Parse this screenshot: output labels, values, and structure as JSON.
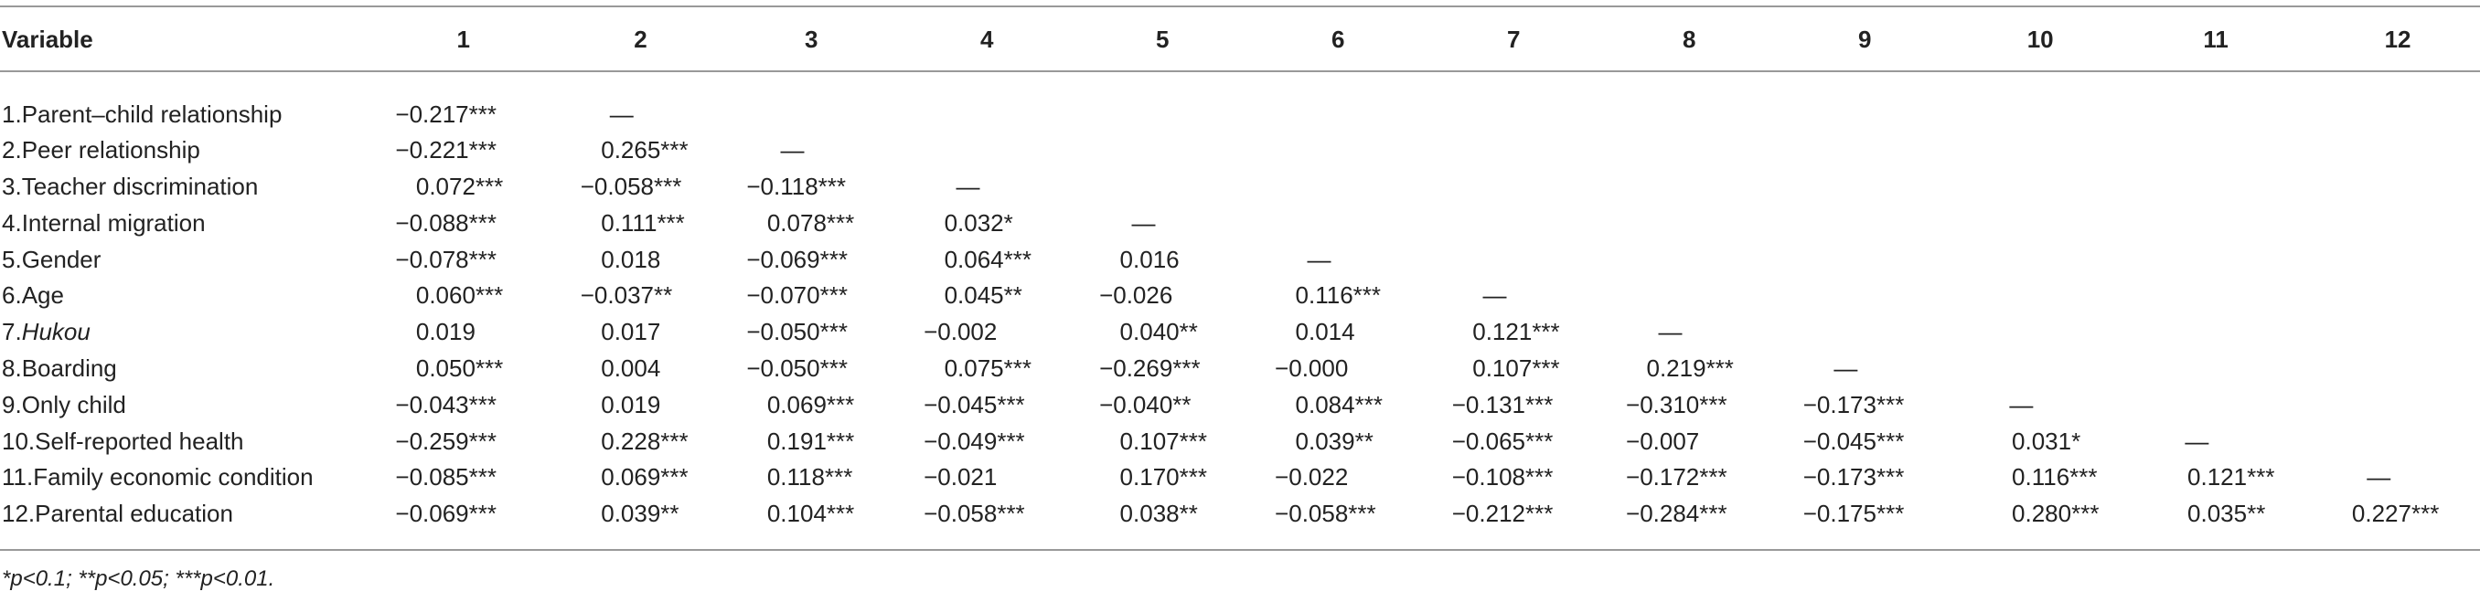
{
  "table": {
    "header": [
      "Variable",
      "1",
      "2",
      "3",
      "4",
      "5",
      "6",
      "7",
      "8",
      "9",
      "10",
      "11",
      "12"
    ],
    "rows": [
      {
        "num": "1.",
        "name": "Parent–child relationship",
        "cells": [
          "−0.217***",
          "—"
        ]
      },
      {
        "num": "2.",
        "name": "Peer relationship",
        "cells": [
          "−0.221***",
          "0.265***",
          "—"
        ]
      },
      {
        "num": "3.",
        "name": "Teacher discrimination",
        "cells": [
          "0.072***",
          "−0.058***",
          "−0.118***",
          "—"
        ]
      },
      {
        "num": "4.",
        "name": "Internal migration",
        "cells": [
          "−0.088***",
          "0.111***",
          "0.078***",
          "0.032*",
          "—"
        ]
      },
      {
        "num": "5.",
        "name": "Gender",
        "cells": [
          "−0.078***",
          "0.018",
          "−0.069***",
          "0.064***",
          "0.016",
          "—"
        ]
      },
      {
        "num": "6.",
        "name": "Age",
        "cells": [
          "0.060***",
          "−0.037**",
          "−0.070***",
          "0.045**",
          "−0.026",
          "0.116***",
          "—"
        ]
      },
      {
        "num": "7.",
        "name": "Hukou",
        "italic": true,
        "cells": [
          "0.019",
          "0.017",
          "−0.050***",
          "−0.002",
          "0.040**",
          "0.014",
          "0.121***",
          "—"
        ]
      },
      {
        "num": "8.",
        "name": "Boarding",
        "cells": [
          "0.050***",
          "0.004",
          "−0.050***",
          "0.075***",
          "−0.269***",
          "−0.000",
          "0.107***",
          "0.219***",
          "—"
        ]
      },
      {
        "num": "9.",
        "name": "Only child",
        "cells": [
          "−0.043***",
          "0.019",
          "0.069***",
          "−0.045***",
          "−0.040**",
          "0.084***",
          "−0.131***",
          "−0.310***",
          "−0.173***",
          "—"
        ]
      },
      {
        "num": "10.",
        "name": "Self-reported health",
        "cells": [
          "−0.259***",
          "0.228***",
          "0.191***",
          "−0.049***",
          "0.107***",
          "0.039**",
          "−0.065***",
          "−0.007",
          "−0.045***",
          "0.031*",
          "—"
        ]
      },
      {
        "num": "11.",
        "name": "Family economic condition",
        "cells": [
          "−0.085***",
          "0.069***",
          "0.118***",
          "−0.021",
          "0.170***",
          "−0.022",
          "−0.108***",
          "−0.172***",
          "−0.173***",
          "0.116***",
          "0.121***",
          "—"
        ]
      },
      {
        "num": "12.",
        "name": "Parental education",
        "cells": [
          "−0.069***",
          "0.039**",
          "0.104***",
          "−0.058***",
          "0.038**",
          "−0.058***",
          "−0.212***",
          "−0.284***",
          "−0.175***",
          "0.280***",
          "0.035**",
          "0.227***"
        ]
      }
    ],
    "footnote": "*p<0.1; **p<0.05; ***p<0.01."
  }
}
